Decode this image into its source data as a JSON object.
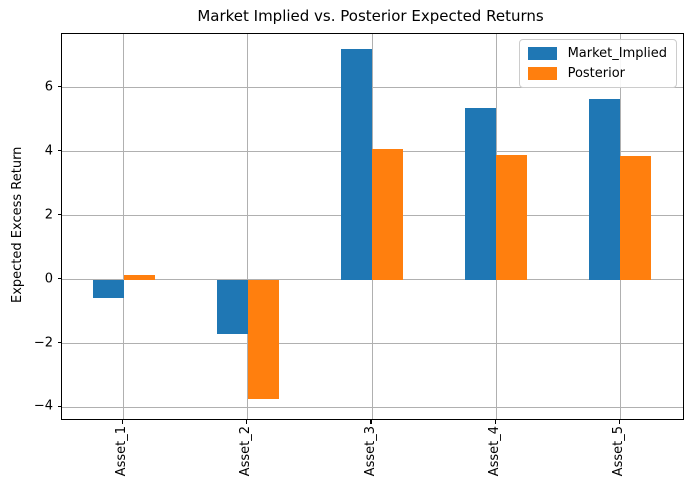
{
  "chart_data": {
    "type": "bar",
    "title": "Market Implied vs. Posterior Expected Returns",
    "xlabel": "",
    "ylabel": "Expected Excess Return",
    "categories": [
      "Asset_1",
      "Asset_2",
      "Asset_3",
      "Asset_4",
      "Asset_5"
    ],
    "series": [
      {
        "name": "Market_Implied",
        "color": "#1f77b4",
        "values": [
          -0.56,
          -1.7,
          7.2,
          5.36,
          5.64
        ]
      },
      {
        "name": "Posterior",
        "color": "#ff7f0e",
        "values": [
          0.13,
          -3.73,
          4.08,
          3.9,
          3.88
        ]
      }
    ],
    "yticks": [
      -4,
      -2,
      0,
      2,
      4,
      6
    ],
    "ylim": [
      -4.36,
      7.7
    ],
    "grid": true,
    "legend_position": "upper right",
    "xtick_rotation": 90,
    "bar_group_width_fraction": 0.5
  },
  "colors": {
    "background": "#ffffff",
    "grid": "#b0b0b0",
    "spine": "#000000",
    "legend_border": "#cccccc",
    "text": "#000000"
  }
}
